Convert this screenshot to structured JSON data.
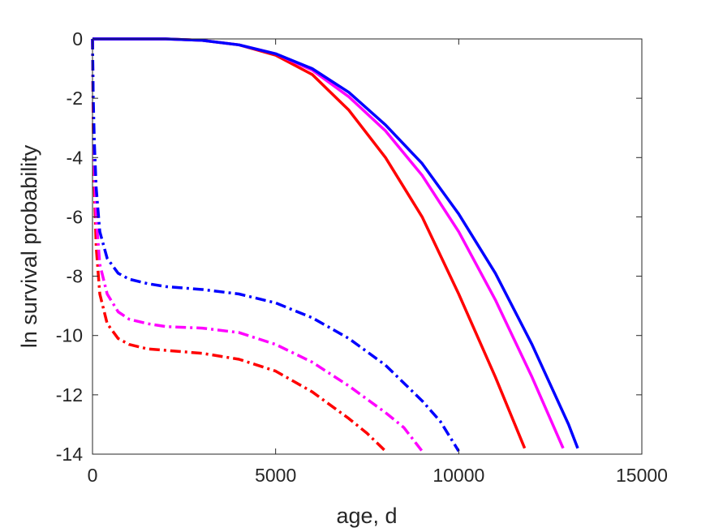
{
  "chart_data": {
    "type": "line",
    "title": "",
    "xlabel": "age, d",
    "ylabel": "ln survival probability",
    "xlim": [
      0,
      15000
    ],
    "ylim": [
      -14,
      0
    ],
    "xticks": [
      0,
      5000,
      10000,
      15000
    ],
    "xtick_labels": [
      "0",
      "5000",
      "10000",
      "15000"
    ],
    "yticks": [
      0,
      -2,
      -4,
      -6,
      -8,
      -10,
      -12,
      -14
    ],
    "ytick_labels": [
      "0",
      "-2",
      "-4",
      "-6",
      "-8",
      "-10",
      "-12",
      "-14"
    ],
    "grid": false,
    "legend": "none",
    "series": [
      {
        "color": "#ff0000",
        "style": "solid",
        "x": [
          0,
          1000,
          2000,
          3000,
          4000,
          5000,
          6000,
          7000,
          8000,
          9000,
          10000,
          11000,
          11800
        ],
        "y": [
          0,
          0,
          0,
          -0.05,
          -0.2,
          -0.55,
          -1.2,
          -2.4,
          -4.0,
          -6.0,
          -8.6,
          -11.4,
          -13.8
        ]
      },
      {
        "color": "#ff00ff",
        "style": "solid",
        "x": [
          0,
          1000,
          2000,
          3000,
          4000,
          5000,
          6000,
          7000,
          8000,
          9000,
          10000,
          11000,
          12000,
          12850
        ],
        "y": [
          0,
          0,
          0,
          -0.05,
          -0.2,
          -0.5,
          -1.05,
          -1.95,
          -3.1,
          -4.6,
          -6.5,
          -8.8,
          -11.4,
          -13.8
        ]
      },
      {
        "color": "#0000ff",
        "style": "solid",
        "x": [
          0,
          1000,
          2000,
          3000,
          4000,
          5000,
          6000,
          7000,
          8000,
          9000,
          10000,
          11000,
          12000,
          13000,
          13250
        ],
        "y": [
          0,
          0,
          0,
          -0.05,
          -0.2,
          -0.5,
          -1.0,
          -1.8,
          -2.9,
          -4.2,
          -5.9,
          -7.9,
          -10.3,
          -13.0,
          -13.8
        ]
      },
      {
        "color": "#ff0000",
        "style": "dashdot",
        "x": [
          0,
          20,
          50,
          100,
          200,
          400,
          700,
          1000,
          1500,
          2000,
          3000,
          4000,
          5000,
          6000,
          7000,
          7500,
          8000
        ],
        "y": [
          0,
          -3.0,
          -5.0,
          -7.0,
          -8.6,
          -9.6,
          -10.1,
          -10.3,
          -10.45,
          -10.5,
          -10.6,
          -10.8,
          -11.2,
          -11.9,
          -12.8,
          -13.3,
          -13.9
        ]
      },
      {
        "color": "#ff00ff",
        "style": "dashdot",
        "x": [
          0,
          20,
          50,
          100,
          200,
          400,
          700,
          1000,
          1500,
          2000,
          3000,
          4000,
          5000,
          6000,
          7000,
          8000,
          8500,
          9000
        ],
        "y": [
          0,
          -2.5,
          -4.3,
          -6.0,
          -7.6,
          -8.6,
          -9.2,
          -9.45,
          -9.6,
          -9.7,
          -9.75,
          -9.9,
          -10.3,
          -10.9,
          -11.7,
          -12.6,
          -13.1,
          -13.9
        ]
      },
      {
        "color": "#0000ff",
        "style": "dashdot",
        "x": [
          0,
          20,
          50,
          100,
          200,
          400,
          700,
          1000,
          1500,
          2000,
          3000,
          4000,
          5000,
          6000,
          7000,
          8000,
          9000,
          9500,
          10000
        ],
        "y": [
          0,
          -2.0,
          -3.5,
          -5.0,
          -6.5,
          -7.4,
          -7.9,
          -8.1,
          -8.25,
          -8.35,
          -8.45,
          -8.6,
          -8.9,
          -9.4,
          -10.1,
          -11.0,
          -12.2,
          -12.9,
          -13.9
        ]
      }
    ]
  }
}
